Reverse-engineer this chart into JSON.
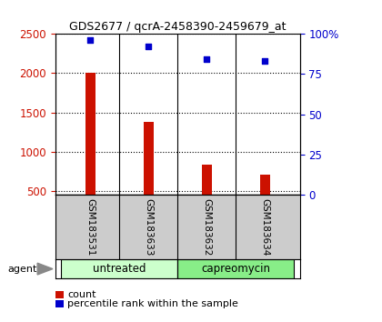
{
  "title": "GDS2677 / qcrA-2458390-2459679_at",
  "samples": [
    "GSM183531",
    "GSM183633",
    "GSM183632",
    "GSM183634"
  ],
  "count_values": [
    2000,
    1380,
    830,
    710
  ],
  "percentile_values": [
    96,
    92,
    84,
    83
  ],
  "ylim_left": [
    450,
    2500
  ],
  "ylim_right": [
    0,
    100
  ],
  "yticks_left": [
    500,
    1000,
    1500,
    2000,
    2500
  ],
  "yticks_right": [
    0,
    25,
    50,
    75,
    100
  ],
  "bar_color": "#cc1100",
  "dot_color": "#0000cc",
  "bar_width": 0.18,
  "left_axis_color": "#cc1100",
  "right_axis_color": "#0000cc",
  "legend_count_label": "count",
  "legend_pct_label": "percentile rank within the sample",
  "background_label": "#cccccc",
  "background_group1": "#ccffcc",
  "background_group2": "#88ee88",
  "agent_label": "agent"
}
